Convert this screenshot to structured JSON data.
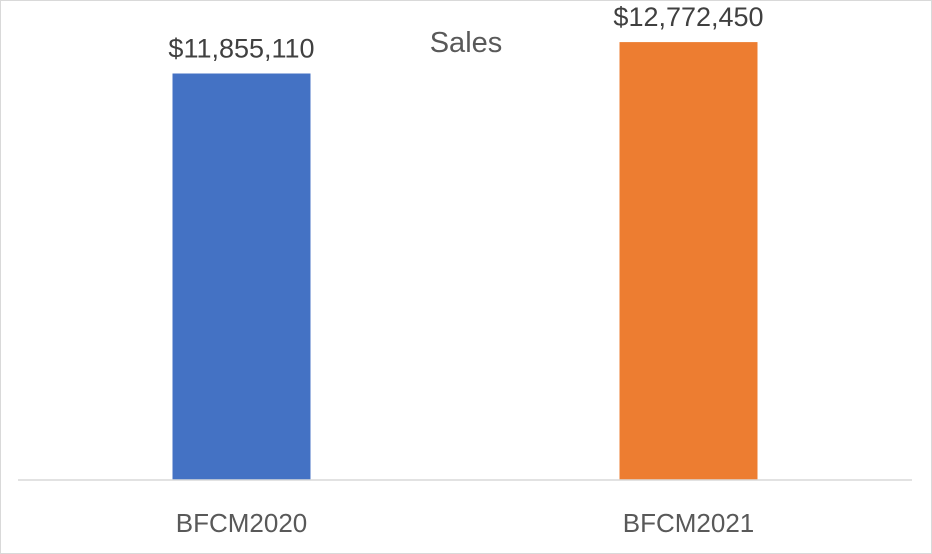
{
  "chart_data": {
    "type": "bar",
    "title": "Sales",
    "categories": [
      "BFCM2020",
      "BFCM2021"
    ],
    "values": [
      11855110,
      12772450
    ],
    "data_labels": [
      "$11,855,110",
      "$12,772,450"
    ],
    "colors": [
      "#4472c4",
      "#ed7d31"
    ],
    "xlabel": "",
    "ylabel": "",
    "ylim": [
      0,
      14000000
    ],
    "grid": false,
    "legend": "none"
  },
  "colors": {
    "axis_line": "#d9d9d9"
  }
}
